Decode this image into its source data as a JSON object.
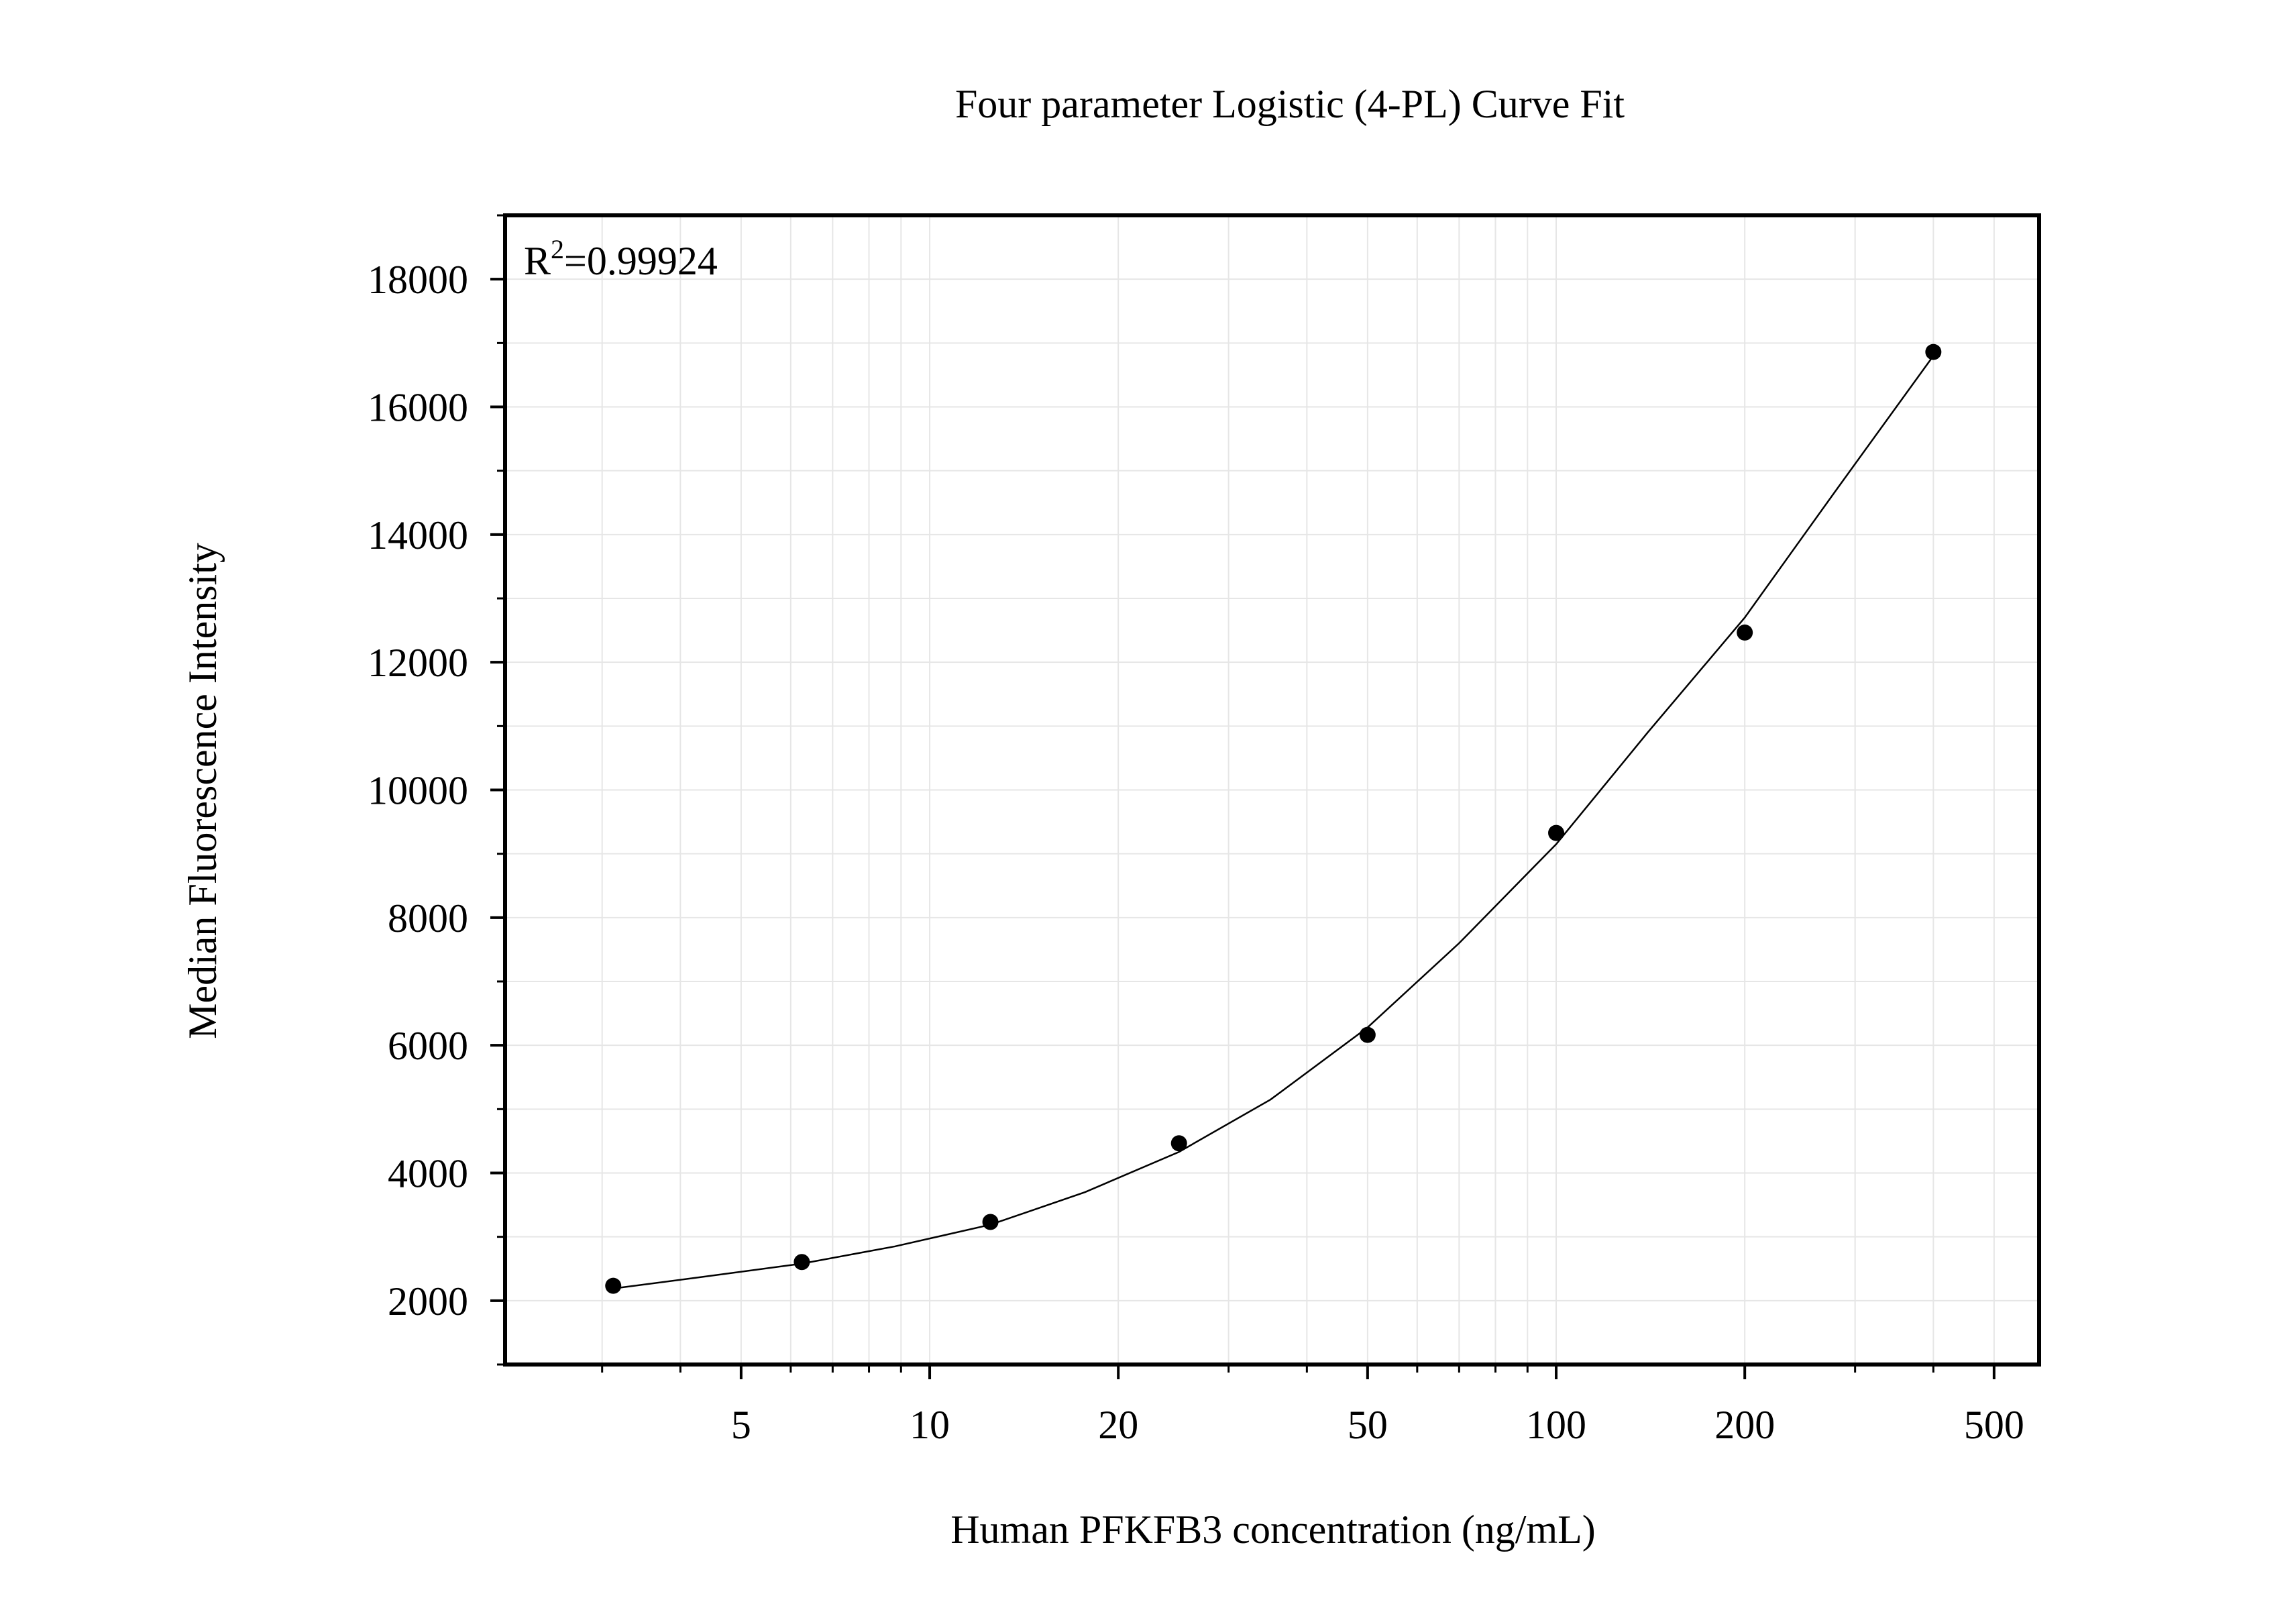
{
  "chart_data": {
    "type": "scatter",
    "title": "Four parameter Logistic (4-PL) Curve Fit",
    "x_label": "Human PFKFB3 concentration (ng/mL)",
    "y_label": "Median Fluorescence Intensity",
    "annotation": {
      "base": "R",
      "sup": "2",
      "rest": "=0.99924"
    },
    "x_log": true,
    "grid": true,
    "x": [
      3.125,
      6.25,
      12.5,
      25,
      50,
      100,
      200,
      400
    ],
    "values": [
      2233,
      2605,
      3233,
      4465,
      6163,
      9326,
      12465,
      16860
    ],
    "color": "#000000",
    "curve": {
      "color": "#000000",
      "x": [
        3.125,
        4.4,
        6.25,
        8.8,
        12.5,
        17.7,
        25,
        35,
        50,
        70,
        100,
        140,
        200,
        280,
        400
      ],
      "values": [
        2190,
        2380,
        2580,
        2850,
        3190,
        3700,
        4330,
        5150,
        6280,
        7600,
        9150,
        10900,
        12700,
        14700,
        16800
      ]
    },
    "xlim": [
      2.1,
      590
    ],
    "ylim": [
      1000,
      19000
    ],
    "xticks": [
      5,
      10,
      20,
      50,
      100,
      200,
      500
    ],
    "x_minor_ticks": [
      3,
      4,
      6,
      7,
      8,
      9,
      30,
      40,
      60,
      70,
      80,
      90,
      300,
      400
    ],
    "yticks": [
      2000,
      4000,
      6000,
      8000,
      10000,
      12000,
      14000,
      16000,
      18000
    ],
    "y_minor_ticks": [
      1000,
      3000,
      5000,
      7000,
      9000,
      11000,
      13000,
      15000,
      17000,
      19000
    ]
  }
}
